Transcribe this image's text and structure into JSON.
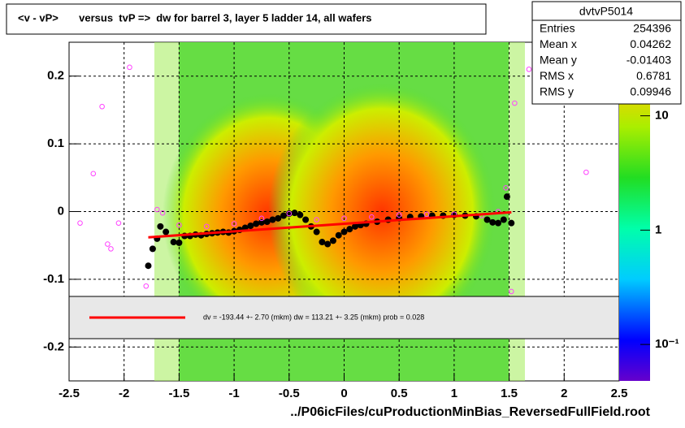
{
  "chart_data": {
    "type": "profile",
    "title": "<v - vP>       versus  tvP =>  dw for barrel 3, layer 5 ladder 14, all wafers",
    "x_label": "../P06icFiles/cuProductionMinBias_ReversedFullField.root",
    "stats": {
      "name": "dvtvP5014",
      "rows": [
        [
          "Entries",
          254396
        ],
        [
          "Mean x",
          0.04262
        ],
        [
          "Mean y",
          -0.01403
        ],
        [
          "RMS x",
          0.6781
        ],
        [
          "RMS y",
          0.09946
        ]
      ]
    },
    "fit_text": "dv = -193.44 +-  2.70 (mkm) dw =  113.21 +-  3.25 (mkm) prob = 0.028",
    "xlim": [
      -2.5,
      2.5
    ],
    "xticks": [
      -2.5,
      -2,
      -1.5,
      -1,
      -0.5,
      0,
      0.5,
      1,
      1.5,
      2,
      2.5
    ],
    "ylim": [
      -0.25,
      0.25
    ],
    "yticks": [
      -0.2,
      -0.1,
      0,
      0.1,
      0.2
    ],
    "zlim": [
      0.048,
      44
    ],
    "zticks": [
      {
        "value": 0.1,
        "label": "10⁻¹"
      },
      1,
      10
    ],
    "log_z": true,
    "grid": true,
    "series": [
      {
        "name": "profile",
        "color": "#000000",
        "x": [
          -1.78,
          -1.74,
          -1.7,
          -1.67,
          -1.62,
          -1.55,
          -1.5,
          -1.45,
          -1.4,
          -1.35,
          -1.3,
          -1.25,
          -1.2,
          -1.15,
          -1.1,
          -1.05,
          -1.0,
          -0.95,
          -0.9,
          -0.85,
          -0.8,
          -0.75,
          -0.7,
          -0.65,
          -0.6,
          -0.55,
          -0.5,
          -0.45,
          -0.4,
          -0.35,
          -0.3,
          -0.25,
          -0.2,
          -0.15,
          -0.1,
          -0.05,
          0,
          0.05,
          0.1,
          0.15,
          0.2,
          0.3,
          0.4,
          0.5,
          0.6,
          0.7,
          0.8,
          0.9,
          1.0,
          1.1,
          1.2,
          1.3,
          1.35,
          1.4,
          1.45,
          1.48,
          1.52
        ],
        "values": [
          -0.08,
          -0.055,
          -0.04,
          -0.022,
          -0.03,
          -0.045,
          -0.046,
          -0.036,
          -0.036,
          -0.034,
          -0.035,
          -0.033,
          -0.032,
          -0.031,
          -0.03,
          -0.031,
          -0.029,
          -0.027,
          -0.024,
          -0.021,
          -0.018,
          -0.016,
          -0.015,
          -0.012,
          -0.01,
          -0.006,
          -0.003,
          -0.002,
          -0.005,
          -0.012,
          -0.022,
          -0.03,
          -0.045,
          -0.048,
          -0.043,
          -0.035,
          -0.03,
          -0.026,
          -0.022,
          -0.02,
          -0.018,
          -0.015,
          -0.012,
          -0.01,
          -0.008,
          -0.007,
          -0.006,
          -0.006,
          -0.005,
          -0.006,
          -0.007,
          -0.012,
          -0.016,
          -0.017,
          -0.012,
          0.022,
          -0.017
        ]
      },
      {
        "name": "mean",
        "color": "#ff44ff",
        "x": [
          -2.4,
          -2.28,
          -2.2,
          -2.15,
          -2.12,
          -2.05,
          -1.95,
          -1.8,
          -1.7,
          -1.65,
          -1.5,
          -1.25,
          -1.0,
          -0.75,
          -0.5,
          -0.25,
          0,
          0.25,
          0.5,
          0.75,
          1.0,
          1.25,
          1.4,
          1.47,
          1.52,
          1.55,
          1.68,
          2.2
        ],
        "values": [
          -0.017,
          0.056,
          0.155,
          -0.048,
          -0.055,
          -0.017,
          0.213,
          -0.11,
          0.003,
          -0.002,
          -0.02,
          -0.022,
          -0.018,
          -0.01,
          -0.003,
          -0.012,
          -0.01,
          -0.008,
          -0.005,
          -0.004,
          -0.004,
          -0.006,
          0.0,
          0.035,
          -0.118,
          0.16,
          0.21,
          0.058
        ]
      },
      {
        "name": "fit",
        "color": "#ff0000",
        "x": [
          -1.78,
          1.52
        ],
        "values": [
          -0.038,
          -0.001
        ]
      }
    ]
  }
}
